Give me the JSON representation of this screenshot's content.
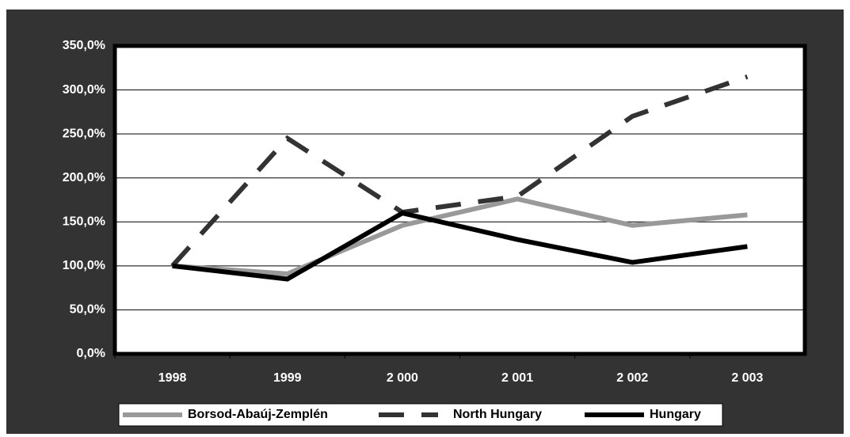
{
  "chart_data": {
    "type": "line",
    "categories": [
      "1998",
      "1999",
      "2 000",
      "2 001",
      "2 002",
      "2 003"
    ],
    "series": [
      {
        "name": "Borsod-Abaúj-Zemplén",
        "color": "#999999",
        "style": "solid",
        "values": [
          100,
          91,
          146,
          176,
          146,
          158
        ]
      },
      {
        "name": "North Hungary",
        "color": "#333333",
        "style": "dashed",
        "values": [
          100,
          245,
          161,
          179,
          270,
          315
        ]
      },
      {
        "name": "Hungary",
        "color": "#000000",
        "style": "solid",
        "values": [
          100,
          85,
          160,
          130,
          104,
          122
        ]
      }
    ],
    "ylim": [
      0,
      350
    ],
    "yticks": [
      {
        "value": 0,
        "label": "0,0%"
      },
      {
        "value": 50,
        "label": "50,0%"
      },
      {
        "value": 100,
        "label": "100,0%"
      },
      {
        "value": 150,
        "label": "150,0%"
      },
      {
        "value": 200,
        "label": "200,0%"
      },
      {
        "value": 250,
        "label": "250,0%"
      },
      {
        "value": 300,
        "label": "300,0%"
      },
      {
        "value": 350,
        "label": "350,0%"
      }
    ],
    "grid": true,
    "legend": "bottom"
  }
}
